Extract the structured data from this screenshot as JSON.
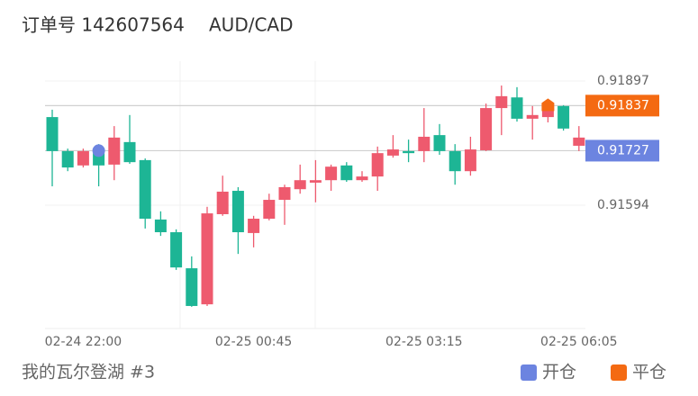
{
  "header": {
    "order": "订单号 142607564",
    "symbol": "AUD/CAD"
  },
  "chart_data": {
    "type": "candlestick",
    "categories": [
      null,
      null,
      "02-24 22:00",
      null,
      null,
      null,
      null,
      null,
      null,
      null,
      null,
      null,
      null,
      "02-25 00:45",
      null,
      null,
      null,
      null,
      null,
      null,
      null,
      null,
      null,
      null,
      "02-25 03:15",
      null,
      null,
      null,
      null,
      null,
      null,
      null,
      null,
      null,
      "02-25 06:05"
    ],
    "open": [
      0.91809,
      0.91726,
      0.91691,
      0.91721,
      0.91693,
      0.91748,
      0.91704,
      0.91559,
      0.91528,
      0.9144,
      0.91352,
      0.91572,
      0.91629,
      0.91526,
      0.91561,
      0.91607,
      0.91633,
      0.91649,
      0.91655,
      0.91691,
      0.91655,
      0.91664,
      0.91715,
      0.91726,
      0.91726,
      0.91765,
      0.91726,
      0.91677,
      0.91728,
      0.91831,
      0.91857,
      0.91805,
      0.91809,
      0.91836,
      0.91739
    ],
    "high": [
      0.91827,
      0.91732,
      0.91732,
      0.91743,
      0.91787,
      0.91814,
      0.91708,
      0.91579,
      0.91535,
      0.91469,
      0.9159,
      0.91666,
      0.91638,
      0.91568,
      0.91622,
      0.91644,
      0.91693,
      0.91704,
      0.91693,
      0.91699,
      0.91677,
      0.91737,
      0.91765,
      0.91754,
      0.91831,
      0.91792,
      0.91743,
      0.91761,
      0.91842,
      0.91886,
      0.91882,
      0.91836,
      0.91844,
      0.91838,
      0.91787
    ],
    "low": [
      0.9164,
      0.91677,
      0.91686,
      0.9164,
      0.91655,
      0.91695,
      0.91537,
      0.91519,
      0.91436,
      0.91346,
      0.91348,
      0.91568,
      0.91475,
      0.91491,
      0.91557,
      0.91546,
      0.91622,
      0.91601,
      0.91629,
      0.91651,
      0.91651,
      0.91629,
      0.9171,
      0.91699,
      0.91699,
      0.91717,
      0.91644,
      0.91666,
      0.91726,
      0.91765,
      0.91798,
      0.91754,
      0.91796,
      0.91776,
      0.91726
    ],
    "close": [
      0.91726,
      0.91686,
      0.91726,
      0.91691,
      0.91759,
      0.91699,
      0.91561,
      0.91528,
      0.91442,
      0.91348,
      0.91574,
      0.91627,
      0.91528,
      0.91561,
      0.91607,
      0.91638,
      0.91655,
      0.91655,
      0.91688,
      0.91655,
      0.91664,
      0.91721,
      0.9173,
      0.91721,
      0.91761,
      0.91726,
      0.91677,
      0.9173,
      0.91831,
      0.9186,
      0.91805,
      0.91814,
      0.91837,
      0.91781,
      0.91759
    ],
    "up_color": "#ee5a6e",
    "down_color": "#1db595",
    "ylim": [
      0.91293,
      0.91941
    ],
    "yticks": [
      0.91897,
      0.91594
    ],
    "grid": true,
    "trades": [
      {
        "name": "开仓",
        "color": "#6c84e0",
        "value": 0.91727,
        "index": 3
      },
      {
        "name": "平仓",
        "color": "#f46a12",
        "value": 0.91837,
        "index": 32
      }
    ],
    "footer": "我的瓦尔登湖 #3"
  }
}
